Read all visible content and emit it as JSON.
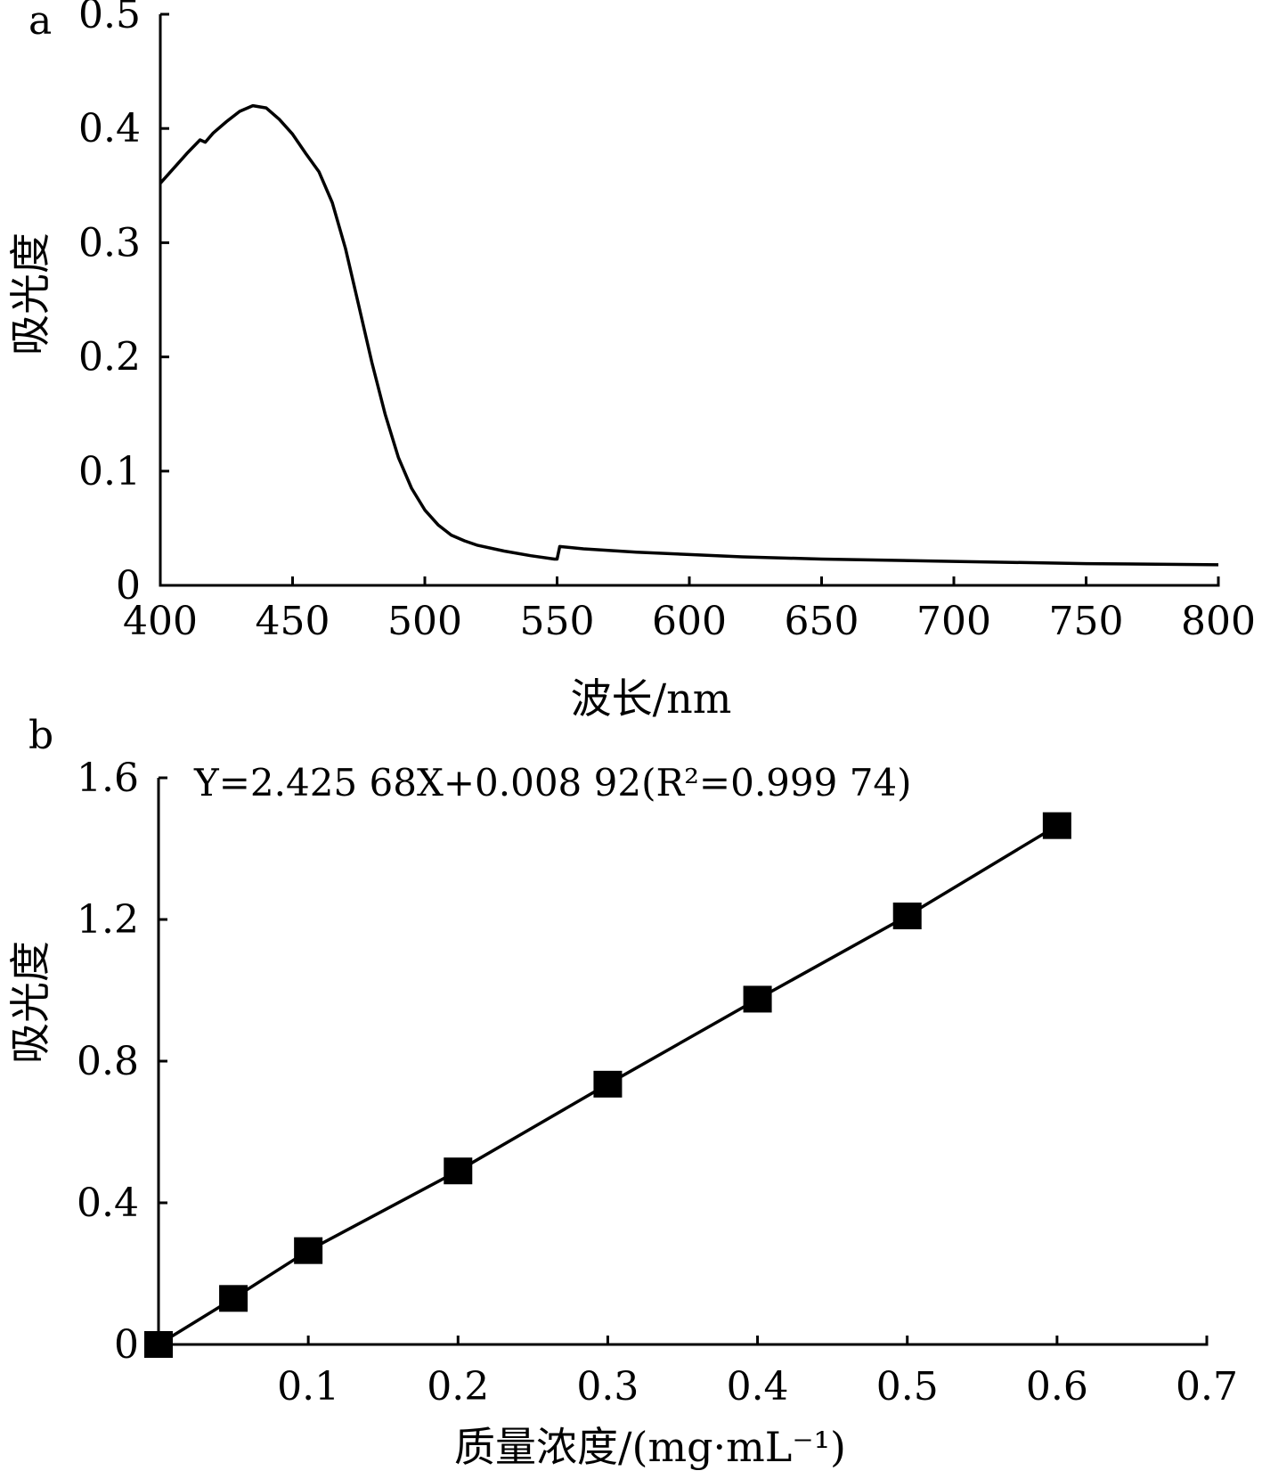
{
  "chart_data": [
    {
      "panel_label": "a",
      "type": "line",
      "xlabel": "波长/nm",
      "ylabel": "吸光度",
      "xlim": [
        400,
        800
      ],
      "ylim": [
        0,
        0.5
      ],
      "xticks": [
        "400",
        "450",
        "500",
        "550",
        "600",
        "650",
        "700",
        "750",
        "800"
      ],
      "yticks": [
        "0",
        "0.1",
        "0.2",
        "0.3",
        "0.4",
        "0.5"
      ],
      "series": [
        {
          "x": [
            400,
            410,
            415,
            417,
            420,
            425,
            430,
            435,
            440,
            445,
            450,
            455,
            460,
            465,
            470,
            475,
            480,
            485,
            490,
            495,
            500,
            505,
            510,
            515,
            520,
            530,
            540,
            549,
            550,
            551,
            560,
            580,
            600,
            620,
            650,
            700,
            750,
            800
          ],
          "y": [
            0.352,
            0.378,
            0.39,
            0.388,
            0.396,
            0.406,
            0.415,
            0.42,
            0.418,
            0.408,
            0.395,
            0.378,
            0.362,
            0.335,
            0.295,
            0.245,
            0.195,
            0.15,
            0.112,
            0.085,
            0.066,
            0.053,
            0.044,
            0.039,
            0.035,
            0.03,
            0.026,
            0.023,
            0.023,
            0.034,
            0.032,
            0.029,
            0.027,
            0.025,
            0.023,
            0.021,
            0.019,
            0.018
          ]
        }
      ]
    },
    {
      "panel_label": "b",
      "type": "scatter",
      "xlabel": "质量浓度/(mg·mL⁻¹)",
      "ylabel": "吸光度",
      "xlim": [
        0,
        0.7
      ],
      "ylim": [
        0,
        1.6
      ],
      "xticks": [
        "0.1",
        "0.2",
        "0.3",
        "0.4",
        "0.5",
        "0.6",
        "0.7"
      ],
      "yticks": [
        "0",
        "0.4",
        "0.8",
        "1.2",
        "1.6"
      ],
      "annotation": "Y=2.425 68X+0.008 92(R²=0.999 74)",
      "fit": {
        "slope": 2.42568,
        "intercept": 0.00892,
        "r2": 0.99974
      },
      "series": [
        {
          "x": [
            0,
            0.05,
            0.1,
            0.2,
            0.3,
            0.4,
            0.5,
            0.6
          ],
          "y": [
            0.0,
            0.13,
            0.265,
            0.49,
            0.735,
            0.975,
            1.21,
            1.465
          ]
        }
      ]
    }
  ]
}
